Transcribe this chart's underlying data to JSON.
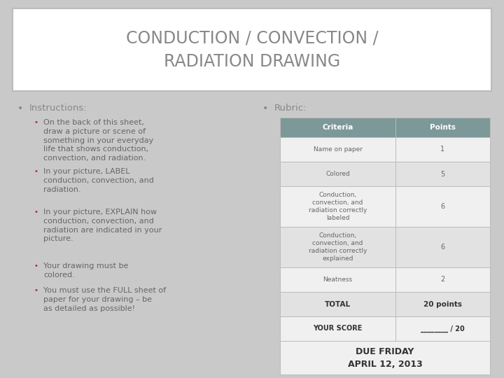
{
  "title": "CONDUCTION / CONVECTION /\nRADIATION DRAWING",
  "background_color": "#c9c9c9",
  "title_box_color": "#ffffff",
  "title_box_edge_color": "#bbbbbb",
  "title_color": "#888888",
  "title_fontsize": 17,
  "bullet_header": "Instructions:",
  "bullet_header_color": "#888888",
  "bullet_color": "#aa3333",
  "bullet_text_color": "#666666",
  "bullet_header_fontsize": 9.5,
  "bullet_fontsize": 8.0,
  "bullets": [
    "On the back of this sheet,\ndraw a picture or scene of\nsomething in your everyday\nlife that shows conduction,\nconvection, and radiation.",
    "In your picture, LABEL\nconduction, convection, and\nradiation.",
    "In your picture, EXPLAIN how\nconduction, convection, and\nradiation are indicated in your\npicture.",
    "Your drawing must be\ncolored.",
    "You must use the FULL sheet of\npaper for your drawing – be\nas detailed as possible!"
  ],
  "rubric_header": "Rubric:",
  "rubric_header_color": "#888888",
  "rubric_header_fontsize": 9.5,
  "table_header_bg": "#7d9898",
  "table_header_color": "#ffffff",
  "table_row_bg_light": "#f0f0f0",
  "table_row_bg_dark": "#e2e2e2",
  "table_border_color": "#bbbbbb",
  "table_text_color": "#666666",
  "table_bold_color": "#333333",
  "table_criteria": [
    "Name on paper",
    "Colored",
    "Conduction,\nconvection, and\nradiation correctly\nlabeled",
    "Conduction,\nconvection, and\nradiation correctly\nexplained",
    "Neatness"
  ],
  "table_points": [
    "1",
    "5",
    "6",
    "6",
    "2"
  ],
  "table_total_label": "TOTAL",
  "table_total_points": "20 points",
  "table_score_label": "YOUR SCORE",
  "table_score_points": "________ / 20",
  "due_text": "DUE FRIDAY\nAPRIL 12, 2013"
}
